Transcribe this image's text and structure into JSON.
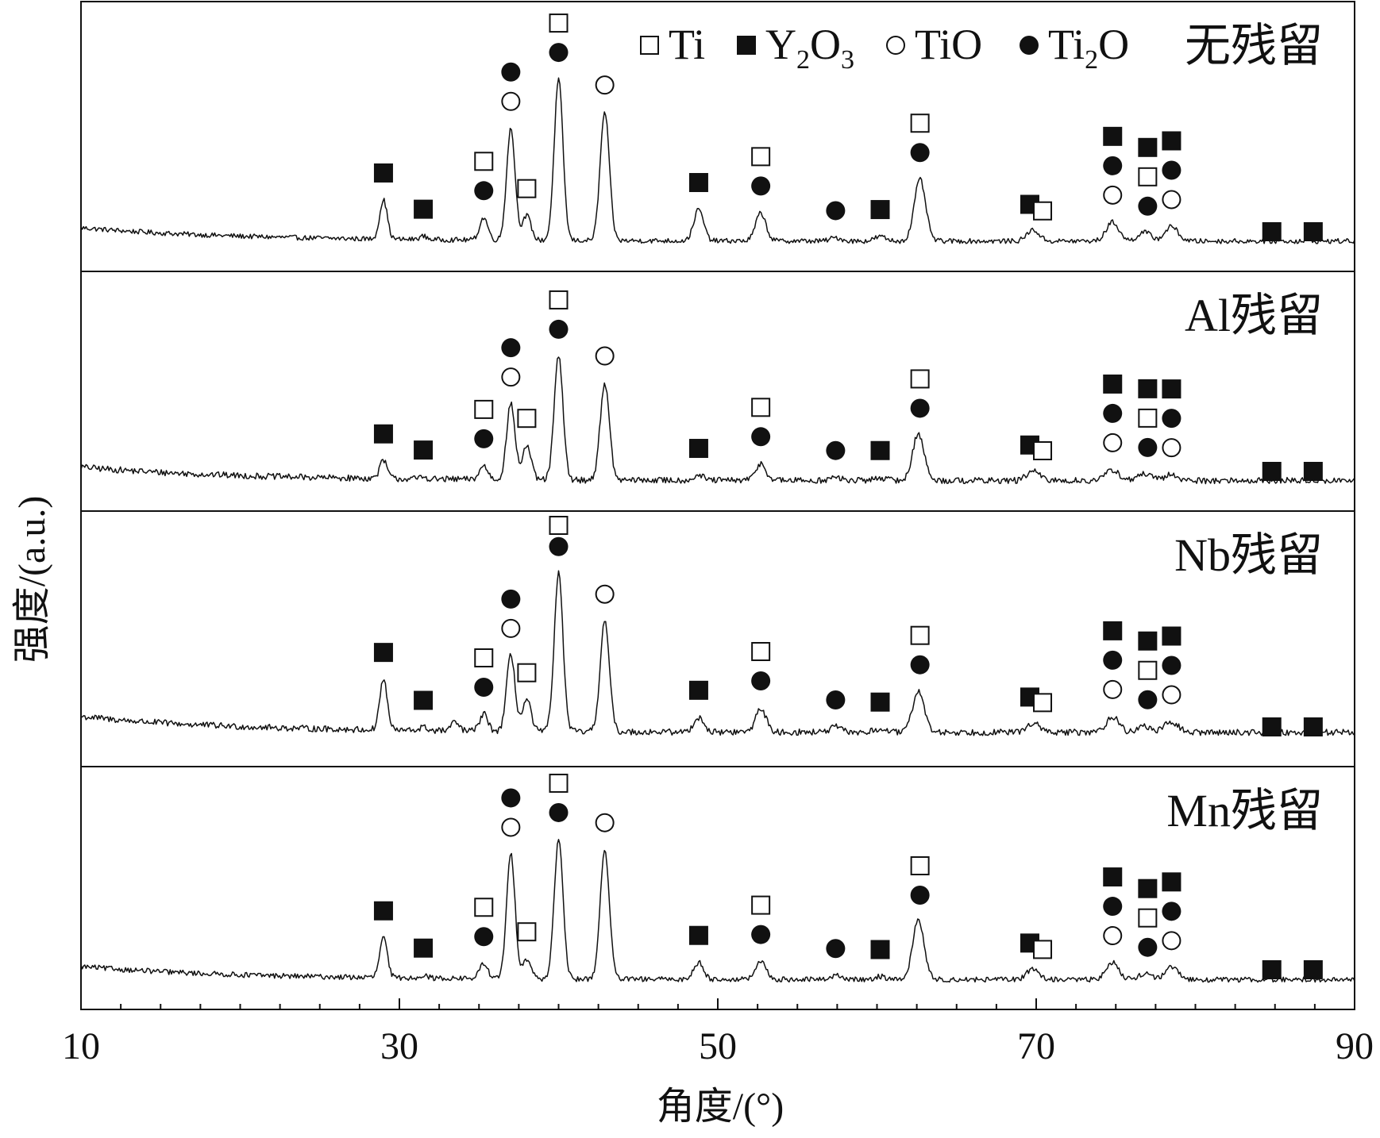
{
  "chart_data": {
    "type": "line",
    "xlabel": "角度/(°)",
    "ylabel": "强度/(a.u.)",
    "xlim": [
      10,
      90
    ],
    "x_ticks": [
      10,
      30,
      50,
      70,
      90
    ],
    "x_minor_step": 2.5,
    "grid": false,
    "legend_position": "top-right",
    "legend": [
      {
        "symbol": "open-square",
        "label": "Ti"
      },
      {
        "symbol": "filled-square",
        "label": "Y",
        "sub1": "2",
        "label2": "O",
        "sub2": "3"
      },
      {
        "symbol": "open-circle",
        "label": "TiO"
      },
      {
        "symbol": "filled-circle",
        "label": "Ti",
        "sub1": "2",
        "label2": "O"
      }
    ],
    "series": [
      {
        "name": "无残留",
        "baseline": 20,
        "noise": 2.2,
        "peaks": [
          [
            29.0,
            35
          ],
          [
            31.5,
            3
          ],
          [
            35.3,
            20
          ],
          [
            37.0,
            100
          ],
          [
            38.0,
            22
          ],
          [
            40.0,
            144
          ],
          [
            42.9,
            115
          ],
          [
            48.8,
            28
          ],
          [
            52.7,
            25
          ],
          [
            57.4,
            3
          ],
          [
            60.2,
            4
          ],
          [
            62.7,
            55
          ],
          [
            69.8,
            10
          ],
          [
            74.8,
            17
          ],
          [
            76.8,
            8
          ],
          [
            78.5,
            13
          ]
        ],
        "markers": [
          {
            "x": 29.0,
            "symbols": [
              "filled-square"
            ]
          },
          {
            "x": 31.5,
            "symbols": [
              "filled-square"
            ]
          },
          {
            "x": 35.3,
            "symbols": [
              "open-square",
              "filled-circle"
            ]
          },
          {
            "x": 37.0,
            "symbols": [
              "filled-circle",
              "open-circle"
            ]
          },
          {
            "x": 38.0,
            "symbols": [
              "open-square"
            ]
          },
          {
            "x": 40.0,
            "symbols": [
              "open-square",
              "filled-circle"
            ]
          },
          {
            "x": 42.9,
            "symbols": [
              "open-circle"
            ]
          },
          {
            "x": 48.8,
            "symbols": [
              "filled-square"
            ]
          },
          {
            "x": 52.7,
            "symbols": [
              "open-square",
              "filled-circle"
            ]
          },
          {
            "x": 57.4,
            "symbols": [
              "filled-circle"
            ]
          },
          {
            "x": 60.2,
            "symbols": [
              "filled-square"
            ]
          },
          {
            "x": 62.7,
            "symbols": [
              "open-square",
              "filled-circle"
            ]
          },
          {
            "x": 69.6,
            "symbols": [
              "filled-square"
            ]
          },
          {
            "x": 70.4,
            "symbols": [
              "open-square"
            ]
          },
          {
            "x": 74.8,
            "symbols": [
              "filled-square",
              "filled-circle",
              "open-circle"
            ]
          },
          {
            "x": 77.0,
            "symbols": [
              "filled-square",
              "open-square",
              "filled-circle"
            ]
          },
          {
            "x": 78.5,
            "symbols": [
              "filled-square",
              "filled-circle",
              "open-circle"
            ]
          },
          {
            "x": 84.8,
            "symbols": [
              "filled-square"
            ]
          },
          {
            "x": 87.4,
            "symbols": [
              "filled-square"
            ]
          }
        ]
      },
      {
        "name": "Al残留",
        "baseline": 23,
        "noise": 3.2,
        "peaks": [
          [
            29.0,
            18
          ],
          [
            31.5,
            2
          ],
          [
            35.3,
            14
          ],
          [
            37.0,
            77
          ],
          [
            38.0,
            35
          ],
          [
            40.0,
            126
          ],
          [
            42.9,
            99
          ],
          [
            48.8,
            5
          ],
          [
            52.7,
            17
          ],
          [
            57.4,
            3
          ],
          [
            60.2,
            3
          ],
          [
            62.6,
            48
          ],
          [
            69.8,
            10
          ],
          [
            74.8,
            11
          ],
          [
            76.8,
            7
          ],
          [
            78.5,
            6
          ]
        ],
        "markers": [
          {
            "x": 29.0,
            "symbols": [
              "filled-square"
            ]
          },
          {
            "x": 31.5,
            "symbols": [
              "filled-square"
            ]
          },
          {
            "x": 35.3,
            "symbols": [
              "open-square",
              "filled-circle"
            ]
          },
          {
            "x": 37.0,
            "symbols": [
              "filled-circle",
              "open-circle"
            ]
          },
          {
            "x": 38.0,
            "symbols": [
              "open-square"
            ]
          },
          {
            "x": 40.0,
            "symbols": [
              "open-square",
              "filled-circle"
            ]
          },
          {
            "x": 42.9,
            "symbols": [
              "open-circle"
            ]
          },
          {
            "x": 48.8,
            "symbols": [
              "filled-square"
            ]
          },
          {
            "x": 52.7,
            "symbols": [
              "open-square",
              "filled-circle"
            ]
          },
          {
            "x": 57.4,
            "symbols": [
              "filled-circle"
            ]
          },
          {
            "x": 60.2,
            "symbols": [
              "filled-square"
            ]
          },
          {
            "x": 62.7,
            "symbols": [
              "open-square",
              "filled-circle"
            ]
          },
          {
            "x": 69.6,
            "symbols": [
              "filled-square"
            ]
          },
          {
            "x": 70.4,
            "symbols": [
              "open-square"
            ]
          },
          {
            "x": 74.8,
            "symbols": [
              "filled-square",
              "filled-circle",
              "open-circle"
            ]
          },
          {
            "x": 77.0,
            "symbols": [
              "filled-square",
              "open-square",
              "filled-circle"
            ]
          },
          {
            "x": 78.5,
            "symbols": [
              "filled-square",
              "filled-circle",
              "open-circle"
            ]
          },
          {
            "x": 84.8,
            "symbols": [
              "filled-square"
            ]
          },
          {
            "x": 87.4,
            "symbols": [
              "filled-square"
            ]
          }
        ]
      },
      {
        "name": "Nb残留",
        "baseline": 25,
        "noise": 3.0,
        "peaks": [
          [
            29.0,
            48
          ],
          [
            31.5,
            3
          ],
          [
            33.5,
            8
          ],
          [
            35.3,
            16
          ],
          [
            37.0,
            72
          ],
          [
            38.0,
            30
          ],
          [
            40.0,
            150
          ],
          [
            42.9,
            105
          ],
          [
            48.8,
            14
          ],
          [
            52.7,
            23
          ],
          [
            57.4,
            5
          ],
          [
            60.2,
            3
          ],
          [
            62.6,
            40
          ],
          [
            69.8,
            9
          ],
          [
            74.8,
            15
          ],
          [
            76.8,
            6
          ],
          [
            78.5,
            10
          ]
        ],
        "markers": [
          {
            "x": 29.0,
            "symbols": [
              "filled-square"
            ]
          },
          {
            "x": 31.5,
            "symbols": [
              "filled-square"
            ]
          },
          {
            "x": 35.3,
            "symbols": [
              "open-square",
              "filled-circle"
            ]
          },
          {
            "x": 37.0,
            "symbols": [
              "filled-circle",
              "open-circle"
            ]
          },
          {
            "x": 38.0,
            "symbols": [
              "open-square"
            ]
          },
          {
            "x": 40.0,
            "symbols": [
              "open-square",
              "filled-circle"
            ]
          },
          {
            "x": 42.9,
            "symbols": [
              "open-circle"
            ]
          },
          {
            "x": 48.8,
            "symbols": [
              "filled-square"
            ]
          },
          {
            "x": 52.7,
            "symbols": [
              "open-square",
              "filled-circle"
            ]
          },
          {
            "x": 57.4,
            "symbols": [
              "filled-circle"
            ]
          },
          {
            "x": 60.2,
            "symbols": [
              "filled-square"
            ]
          },
          {
            "x": 62.7,
            "symbols": [
              "open-square",
              "filled-circle"
            ]
          },
          {
            "x": 69.6,
            "symbols": [
              "filled-square"
            ]
          },
          {
            "x": 70.4,
            "symbols": [
              "open-square"
            ]
          },
          {
            "x": 74.8,
            "symbols": [
              "filled-square",
              "filled-circle",
              "open-circle"
            ]
          },
          {
            "x": 77.0,
            "symbols": [
              "filled-square",
              "open-square",
              "filled-circle"
            ]
          },
          {
            "x": 78.5,
            "symbols": [
              "filled-square",
              "filled-circle",
              "open-circle"
            ]
          },
          {
            "x": 84.8,
            "symbols": [
              "filled-square"
            ]
          },
          {
            "x": 87.4,
            "symbols": [
              "filled-square"
            ]
          }
        ]
      },
      {
        "name": "Mn残留",
        "baseline": 22,
        "noise": 2.6,
        "peaks": [
          [
            29.0,
            40
          ],
          [
            31.5,
            3
          ],
          [
            35.3,
            15
          ],
          [
            37.0,
            125
          ],
          [
            38.0,
            20
          ],
          [
            40.0,
            140
          ],
          [
            42.9,
            130
          ],
          [
            48.8,
            17
          ],
          [
            52.7,
            18
          ],
          [
            57.4,
            4
          ],
          [
            60.2,
            3
          ],
          [
            62.6,
            60
          ],
          [
            69.8,
            11
          ],
          [
            74.8,
            17
          ],
          [
            76.8,
            6
          ],
          [
            78.5,
            12
          ]
        ],
        "markers": [
          {
            "x": 29.0,
            "symbols": [
              "filled-square"
            ]
          },
          {
            "x": 31.5,
            "symbols": [
              "filled-square"
            ]
          },
          {
            "x": 35.3,
            "symbols": [
              "open-square",
              "filled-circle"
            ]
          },
          {
            "x": 37.0,
            "symbols": [
              "filled-circle",
              "open-circle"
            ]
          },
          {
            "x": 38.0,
            "symbols": [
              "open-square"
            ]
          },
          {
            "x": 40.0,
            "symbols": [
              "open-square",
              "filled-circle"
            ]
          },
          {
            "x": 42.9,
            "symbols": [
              "open-circle"
            ]
          },
          {
            "x": 48.8,
            "symbols": [
              "filled-square"
            ]
          },
          {
            "x": 52.7,
            "symbols": [
              "open-square",
              "filled-circle"
            ]
          },
          {
            "x": 57.4,
            "symbols": [
              "filled-circle"
            ]
          },
          {
            "x": 60.2,
            "symbols": [
              "filled-square"
            ]
          },
          {
            "x": 62.7,
            "symbols": [
              "open-square",
              "filled-circle"
            ]
          },
          {
            "x": 69.6,
            "symbols": [
              "filled-square"
            ]
          },
          {
            "x": 70.4,
            "symbols": [
              "open-square"
            ]
          },
          {
            "x": 74.8,
            "symbols": [
              "filled-square",
              "filled-circle",
              "open-circle"
            ]
          },
          {
            "x": 77.0,
            "symbols": [
              "filled-square",
              "open-square",
              "filled-circle"
            ]
          },
          {
            "x": 78.5,
            "symbols": [
              "filled-square",
              "filled-circle",
              "open-circle"
            ]
          },
          {
            "x": 84.8,
            "symbols": [
              "filled-square"
            ]
          },
          {
            "x": 87.4,
            "symbols": [
              "filled-square"
            ]
          }
        ]
      }
    ]
  }
}
